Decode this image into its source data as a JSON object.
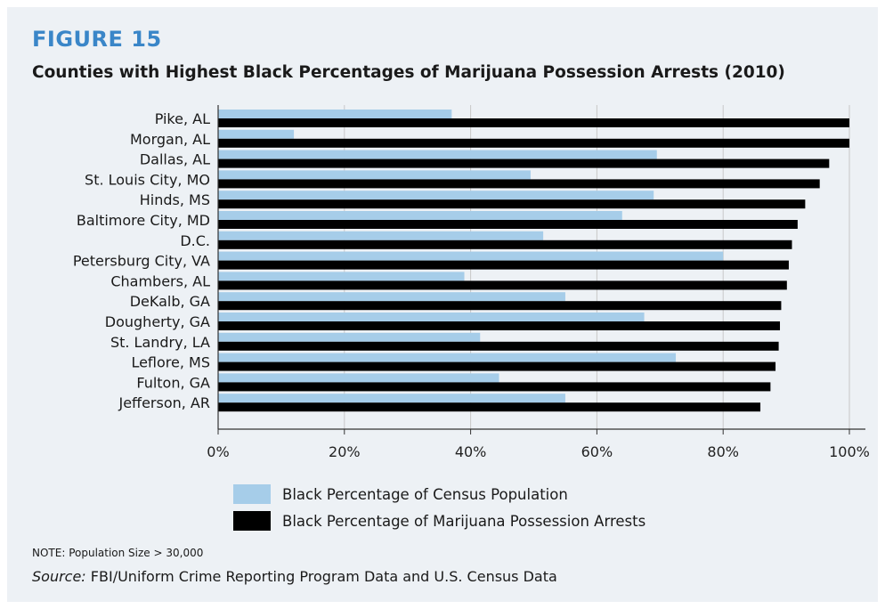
{
  "figure_label": "FIGURE 15",
  "note": "NOTE: Population Size > 30,000",
  "source_label": "Source:",
  "source_text": "FBI/Uniform Crime Reporting Program Data and U.S. Census Data",
  "colors": {
    "census": "#a6cde9",
    "arrests": "#000000",
    "accent": "#3a86c8",
    "grid": "#c8c8c8",
    "panel": "#edf1f5"
  },
  "chart_data": {
    "type": "bar",
    "orientation": "horizontal",
    "title": "Counties with Highest Black Percentages of Marijuana Possession Arrests (2010)",
    "categories": [
      "Pike, AL",
      "Morgan, AL",
      "Dallas, AL",
      "St. Louis City, MO",
      "Hinds, MS",
      "Baltimore City, MD",
      "D.C.",
      "Petersburg City, VA",
      "Chambers, AL",
      "DeKalb, GA",
      "Dougherty, GA",
      "St. Landry, LA",
      "Leflore, MS",
      "Fulton, GA",
      "Jefferson, AR"
    ],
    "series": [
      {
        "name": "Black Percentage of Census Population",
        "values": [
          37,
          12,
          69.5,
          49.5,
          69,
          64,
          51.5,
          80,
          39,
          55,
          67.5,
          41.5,
          72.5,
          44.5,
          55
        ]
      },
      {
        "name": "Black Percentage of Marijuana Possession Arrests",
        "values": [
          100,
          100,
          96.8,
          95.3,
          93,
          91.8,
          90.9,
          90.4,
          90.1,
          89.2,
          89,
          88.8,
          88.3,
          87.5,
          85.9
        ]
      }
    ],
    "xlim": [
      0,
      100
    ],
    "xticks": [
      0,
      20,
      40,
      60,
      80,
      100
    ],
    "xtick_labels": [
      "0%",
      "20%",
      "40%",
      "60%",
      "80%",
      "100%"
    ],
    "grid": true,
    "legend_position": "bottom"
  }
}
